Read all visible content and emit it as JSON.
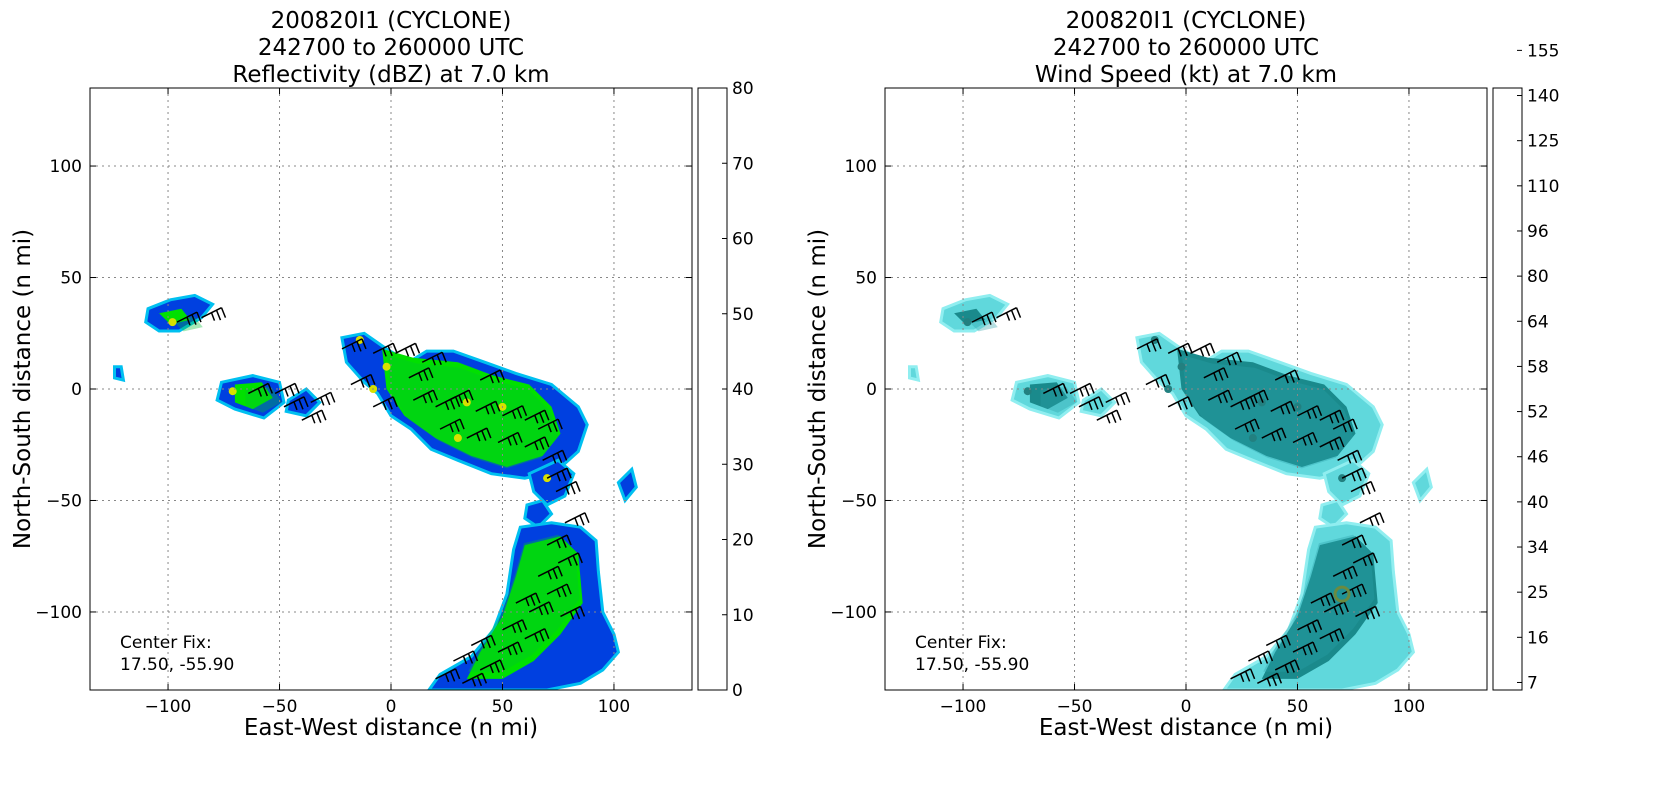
{
  "chart_data": [
    {
      "type": "heatmap",
      "title_lines": [
        "200820I1 (CYCLONE)",
        "242700 to 260000 UTC",
        "Reflectivity (dBZ) at 7.0 km"
      ],
      "xlabel": "East-West distance (n mi)",
      "ylabel": "North-South distance (n mi)",
      "xlim": [
        -135,
        135
      ],
      "ylim": [
        -135,
        135
      ],
      "xticks": [
        -100,
        -50,
        0,
        50,
        100
      ],
      "yticks": [
        -100,
        -50,
        0,
        50,
        100
      ],
      "grid": true,
      "annotation": [
        "Center Fix:",
        "17.50, -55.90"
      ],
      "colorbar": {
        "range": [
          0,
          80
        ],
        "ticks": [
          0,
          10,
          20,
          30,
          40,
          50,
          60,
          70,
          80
        ],
        "colors": [
          "#00e5e5",
          "#00d2e8",
          "#00bfe8",
          "#00a6ec",
          "#0090f0",
          "#0060f0",
          "#0040e0",
          "#0028c8",
          "#0d6b7a",
          "#00e800",
          "#00dc00",
          "#00cf00",
          "#00c200",
          "#00b400",
          "#00a200",
          "#009000",
          "#008000",
          "#a4cc00",
          "#d8e000",
          "#f8f800",
          "#f0dc00",
          "#e8c800",
          "#e8b400",
          "#f0a000",
          "#f08800",
          "#f87000",
          "#ff5000",
          "#ff2800",
          "#ff0000",
          "#ee0000",
          "#dd0000",
          "#cc0000",
          "#c8001a",
          "#dd0070",
          "#ee00c0",
          "#ee10e8",
          "#cc40e0",
          "#a858d0",
          "#7a4aa0",
          "#4a2a60",
          "#000000"
        ]
      },
      "field_colors": {
        "main": "#00e000",
        "alt": "#00bf30",
        "edge": "#0040e0",
        "light": "#00c0f0",
        "core": "#d8e000"
      }
    },
    {
      "type": "heatmap",
      "title_lines": [
        "200820I1 (CYCLONE)",
        "242700 to 260000 UTC",
        "Wind Speed (kt) at 7.0 km"
      ],
      "xlabel": "East-West distance (n mi)",
      "ylabel": "North-South distance (n mi)",
      "xlim": [
        -135,
        135
      ],
      "ylim": [
        -135,
        135
      ],
      "xticks": [
        -100,
        -50,
        0,
        50,
        100
      ],
      "yticks": [
        -100,
        -50,
        0,
        50,
        100
      ],
      "grid": true,
      "annotation": [
        "Center Fix:",
        "17.50, -55.90"
      ],
      "colorbar": {
        "ticks": [
          7,
          16,
          25,
          34,
          40,
          46,
          52,
          58,
          64,
          80,
          96,
          110,
          125,
          140,
          155
        ],
        "colors": [
          "#ffffff",
          "#c0f8f8",
          "#90f0f0",
          "#70e0e4",
          "#50d0d8",
          "#38bcc8",
          "#28a8b8",
          "#20909c",
          "#188888",
          "#1a8070",
          "#20a040",
          "#40b840",
          "#70c850",
          "#a0d860",
          "#d8e470",
          "#f0d060",
          "#f8a840",
          "#f87830",
          "#f04820",
          "#e02010",
          "#c81010",
          "#a00000",
          "#780000",
          "#7a1040",
          "#a020b0",
          "#c040e0",
          "#d070f0",
          "#e098f0",
          "#ecb8f0",
          "#f4c8e8",
          "#f8b8d0",
          "#f8a8b8",
          "#f89098",
          "#f87880",
          "#f06870",
          "#e85860",
          "#d84050",
          "#c83848",
          "#b02838",
          "#981838"
        ]
      },
      "field_colors": {
        "main": "#1a8a8c",
        "alt": "#2aa0a8",
        "edge": "#60d8dc",
        "light": "#90eef0",
        "core": "#228080"
      }
    }
  ]
}
